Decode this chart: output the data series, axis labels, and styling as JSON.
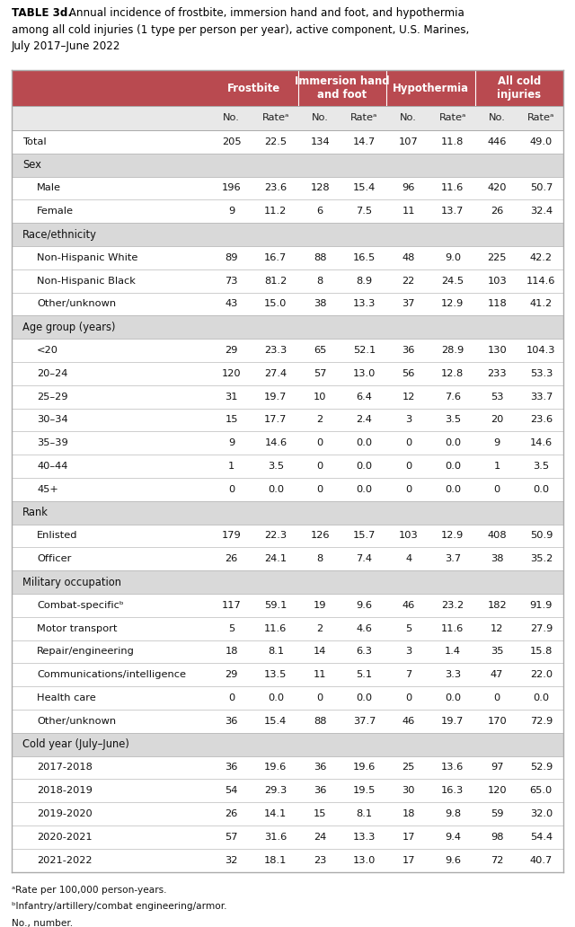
{
  "title_bold": "TABLE 3d.",
  "title_rest": " Annual incidence of frostbite, immersion hand and foot, and hypothermia among all cold injuries (1 type per person per year), active component, U.S. Marines, July 2017–June 2022",
  "header_bg": "#b94a50",
  "header_text": "#ffffff",
  "subheader_bg": "#d9d9d9",
  "subheader_text": "#222222",
  "row_bg_white": "#ffffff",
  "border_color": "#aaaaaa",
  "col_header_row1": [
    "",
    "Frostbite",
    "Immersion hand\nand foot",
    "Hypothermia",
    "All cold\ninjuries"
  ],
  "col_header_row2": [
    "No.",
    "Rateᵃ",
    "No.",
    "Rateᵃ",
    "No.",
    "Rateᵃ",
    "No.",
    "Rateᵃ"
  ],
  "sections": [
    {
      "type": "data",
      "label": "Total",
      "indent": false,
      "values": [
        "205",
        "22.5",
        "134",
        "14.7",
        "107",
        "11.8",
        "446",
        "49.0"
      ]
    },
    {
      "type": "subheader",
      "label": "Sex"
    },
    {
      "type": "data",
      "label": "Male",
      "indent": true,
      "values": [
        "196",
        "23.6",
        "128",
        "15.4",
        "96",
        "11.6",
        "420",
        "50.7"
      ]
    },
    {
      "type": "data",
      "label": "Female",
      "indent": true,
      "values": [
        "9",
        "11.2",
        "6",
        "7.5",
        "11",
        "13.7",
        "26",
        "32.4"
      ]
    },
    {
      "type": "subheader",
      "label": "Race/ethnicity"
    },
    {
      "type": "data",
      "label": "Non-Hispanic White",
      "indent": true,
      "values": [
        "89",
        "16.7",
        "88",
        "16.5",
        "48",
        "9.0",
        "225",
        "42.2"
      ]
    },
    {
      "type": "data",
      "label": "Non-Hispanic Black",
      "indent": true,
      "values": [
        "73",
        "81.2",
        "8",
        "8.9",
        "22",
        "24.5",
        "103",
        "114.6"
      ]
    },
    {
      "type": "data",
      "label": "Other/unknown",
      "indent": true,
      "values": [
        "43",
        "15.0",
        "38",
        "13.3",
        "37",
        "12.9",
        "118",
        "41.2"
      ]
    },
    {
      "type": "subheader",
      "label": "Age group (years)"
    },
    {
      "type": "data",
      "label": "<20",
      "indent": true,
      "values": [
        "29",
        "23.3",
        "65",
        "52.1",
        "36",
        "28.9",
        "130",
        "104.3"
      ]
    },
    {
      "type": "data",
      "label": "20–24",
      "indent": true,
      "values": [
        "120",
        "27.4",
        "57",
        "13.0",
        "56",
        "12.8",
        "233",
        "53.3"
      ]
    },
    {
      "type": "data",
      "label": "25–29",
      "indent": true,
      "values": [
        "31",
        "19.7",
        "10",
        "6.4",
        "12",
        "7.6",
        "53",
        "33.7"
      ]
    },
    {
      "type": "data",
      "label": "30–34",
      "indent": true,
      "values": [
        "15",
        "17.7",
        "2",
        "2.4",
        "3",
        "3.5",
        "20",
        "23.6"
      ]
    },
    {
      "type": "data",
      "label": "35–39",
      "indent": true,
      "values": [
        "9",
        "14.6",
        "0",
        "0.0",
        "0",
        "0.0",
        "9",
        "14.6"
      ]
    },
    {
      "type": "data",
      "label": "40–44",
      "indent": true,
      "values": [
        "1",
        "3.5",
        "0",
        "0.0",
        "0",
        "0.0",
        "1",
        "3.5"
      ]
    },
    {
      "type": "data",
      "label": "45+",
      "indent": true,
      "values": [
        "0",
        "0.0",
        "0",
        "0.0",
        "0",
        "0.0",
        "0",
        "0.0"
      ]
    },
    {
      "type": "subheader",
      "label": "Rank"
    },
    {
      "type": "data",
      "label": "Enlisted",
      "indent": true,
      "values": [
        "179",
        "22.3",
        "126",
        "15.7",
        "103",
        "12.9",
        "408",
        "50.9"
      ]
    },
    {
      "type": "data",
      "label": "Officer",
      "indent": true,
      "values": [
        "26",
        "24.1",
        "8",
        "7.4",
        "4",
        "3.7",
        "38",
        "35.2"
      ]
    },
    {
      "type": "subheader",
      "label": "Military occupation"
    },
    {
      "type": "data",
      "label": "Combat-specificᵇ",
      "indent": true,
      "values": [
        "117",
        "59.1",
        "19",
        "9.6",
        "46",
        "23.2",
        "182",
        "91.9"
      ]
    },
    {
      "type": "data",
      "label": "Motor transport",
      "indent": true,
      "values": [
        "5",
        "11.6",
        "2",
        "4.6",
        "5",
        "11.6",
        "12",
        "27.9"
      ]
    },
    {
      "type": "data",
      "label": "Repair/engineering",
      "indent": true,
      "values": [
        "18",
        "8.1",
        "14",
        "6.3",
        "3",
        "1.4",
        "35",
        "15.8"
      ]
    },
    {
      "type": "data",
      "label": "Communications/intelligence",
      "indent": true,
      "values": [
        "29",
        "13.5",
        "11",
        "5.1",
        "7",
        "3.3",
        "47",
        "22.0"
      ]
    },
    {
      "type": "data",
      "label": "Health care",
      "indent": true,
      "values": [
        "0",
        "0.0",
        "0",
        "0.0",
        "0",
        "0.0",
        "0",
        "0.0"
      ]
    },
    {
      "type": "data",
      "label": "Other/unknown",
      "indent": true,
      "values": [
        "36",
        "15.4",
        "88",
        "37.7",
        "46",
        "19.7",
        "170",
        "72.9"
      ]
    },
    {
      "type": "subheader",
      "label": "Cold year (July–June)"
    },
    {
      "type": "data",
      "label": "2017-2018",
      "indent": true,
      "values": [
        "36",
        "19.6",
        "36",
        "19.6",
        "25",
        "13.6",
        "97",
        "52.9"
      ]
    },
    {
      "type": "data",
      "label": "2018-2019",
      "indent": true,
      "values": [
        "54",
        "29.3",
        "36",
        "19.5",
        "30",
        "16.3",
        "120",
        "65.0"
      ]
    },
    {
      "type": "data",
      "label": "2019-2020",
      "indent": true,
      "values": [
        "26",
        "14.1",
        "15",
        "8.1",
        "18",
        "9.8",
        "59",
        "32.0"
      ]
    },
    {
      "type": "data",
      "label": "2020-2021",
      "indent": true,
      "values": [
        "57",
        "31.6",
        "24",
        "13.3",
        "17",
        "9.4",
        "98",
        "54.4"
      ]
    },
    {
      "type": "data",
      "label": "2021-2022",
      "indent": true,
      "values": [
        "32",
        "18.1",
        "23",
        "13.0",
        "17",
        "9.6",
        "72",
        "40.7"
      ]
    }
  ],
  "footnotes": [
    "ᵃRate per 100,000 person-years.",
    "ᵇInfantry/artillery/combat engineering/armor.",
    "No., number."
  ]
}
